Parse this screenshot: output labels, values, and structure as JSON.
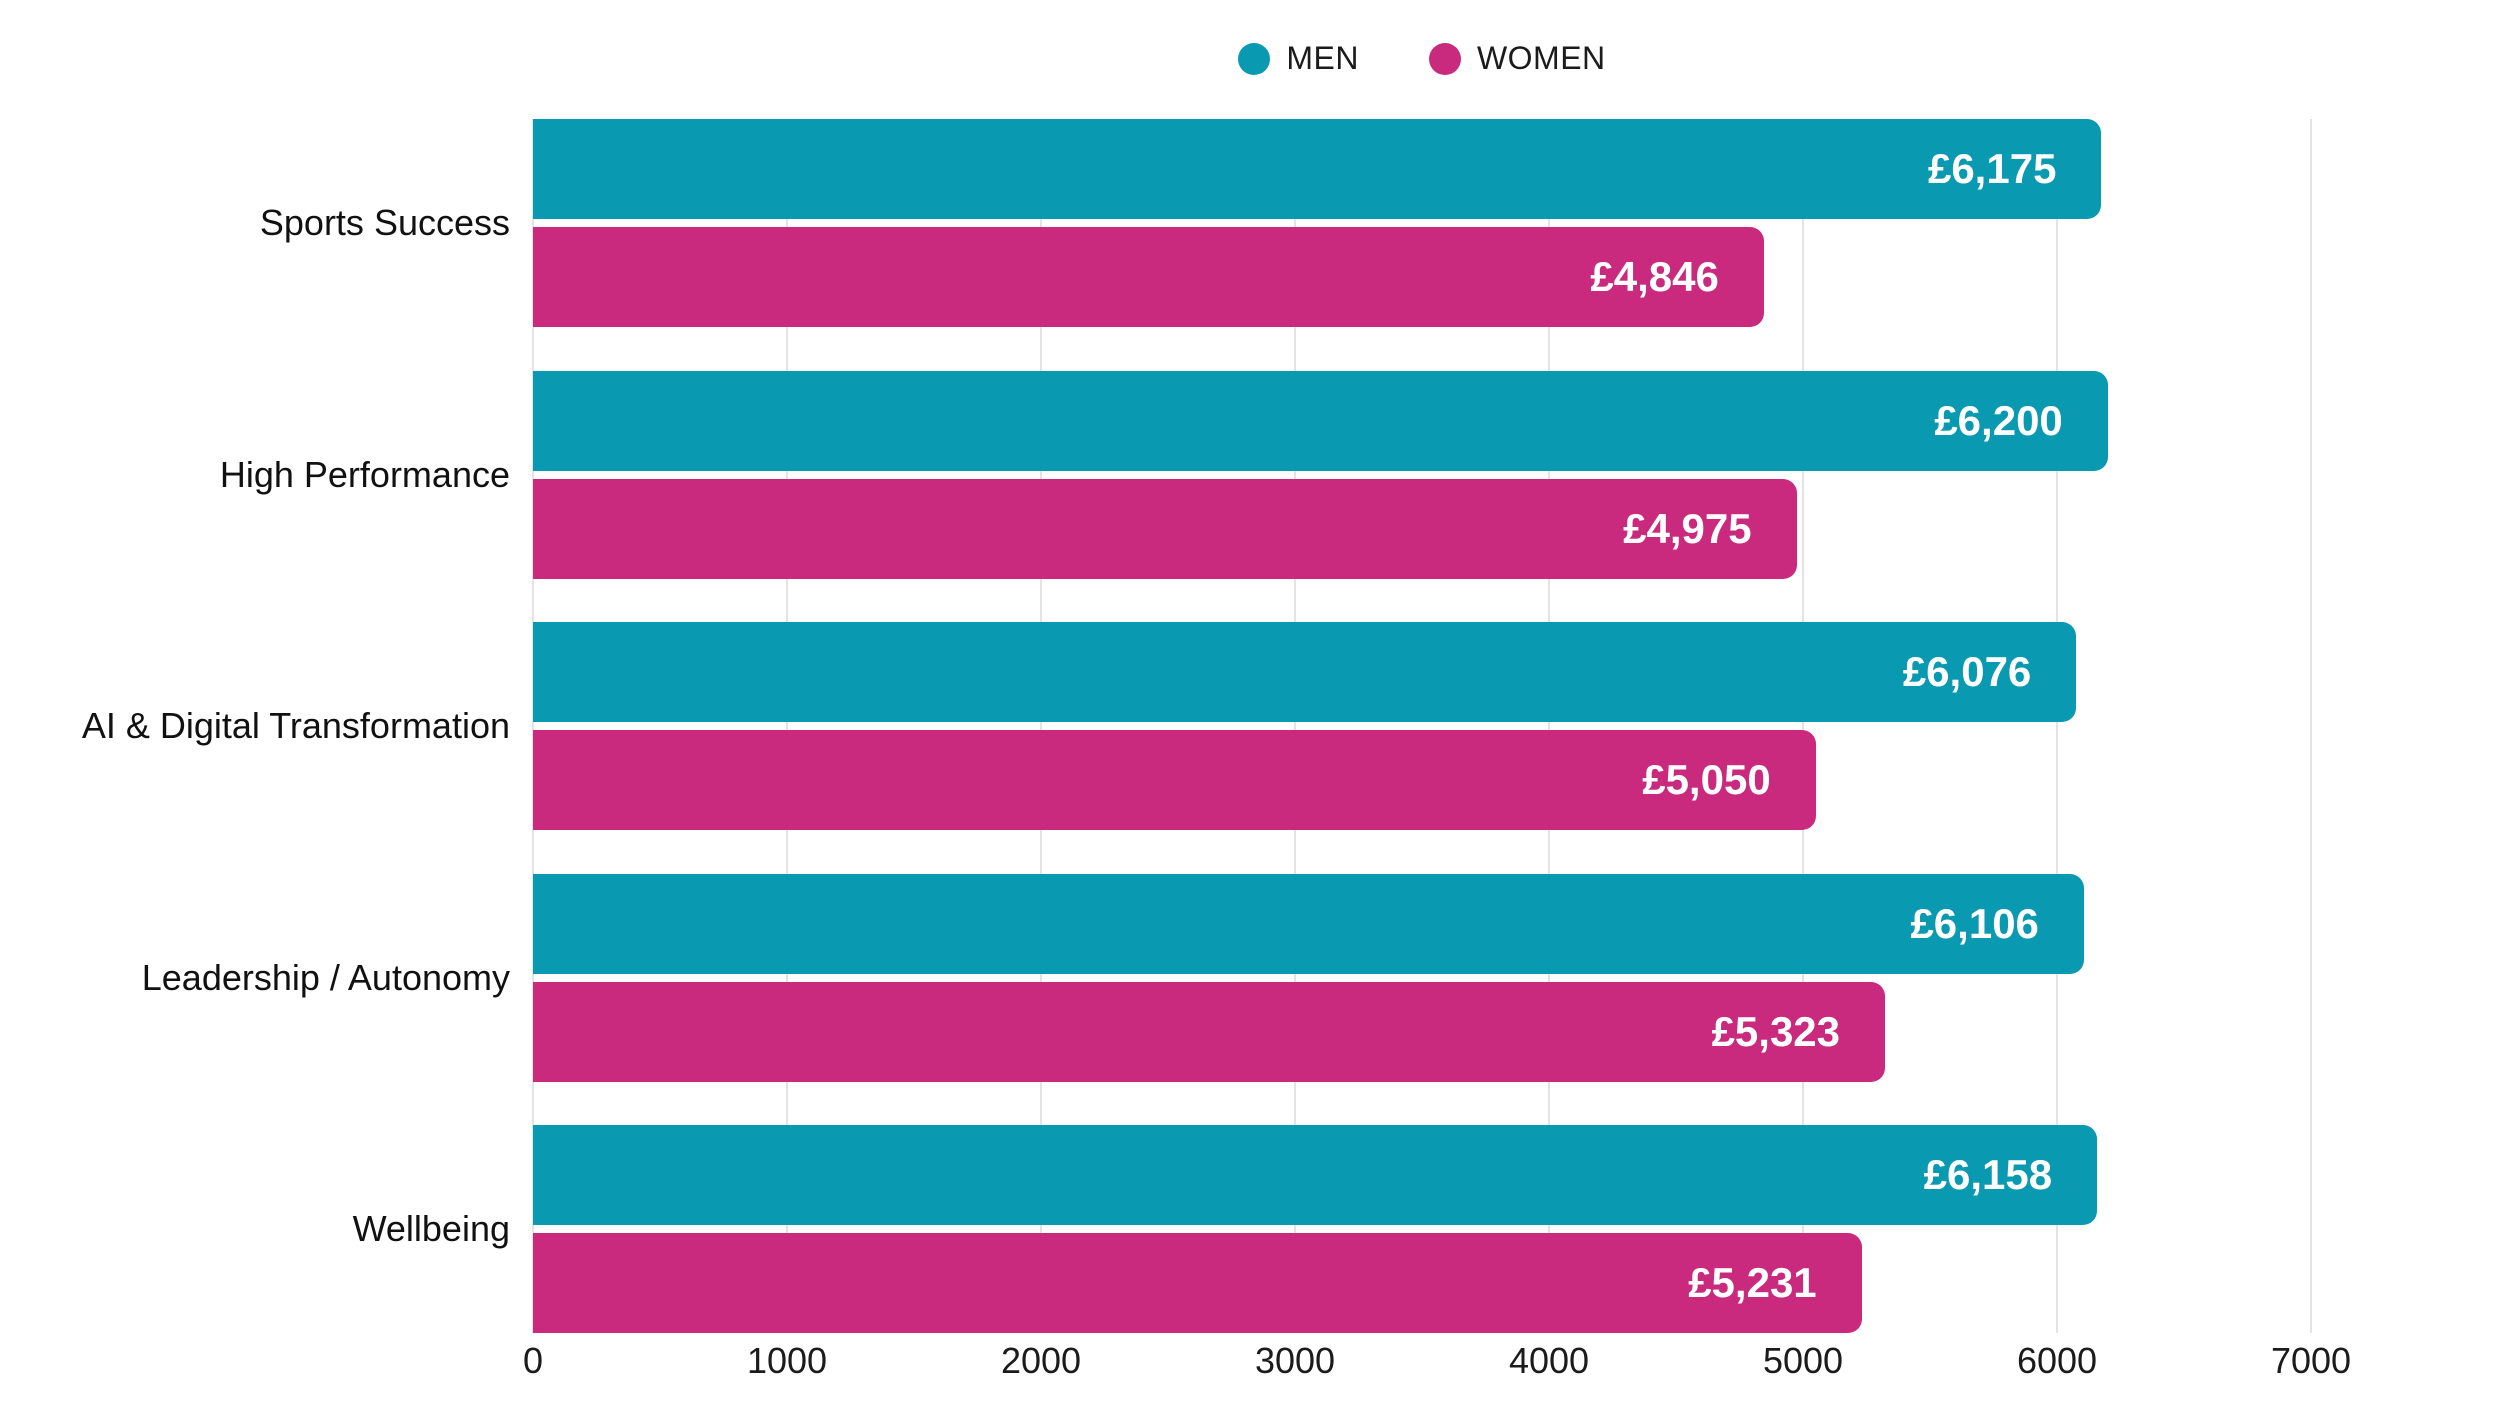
{
  "page": {
    "background": "#FFFFFF",
    "text_color": "#1B1B1B"
  },
  "colors": {
    "men": "#0999B1",
    "women": "#C92A7E",
    "grid": "#E3E3E3",
    "bar_value_text": "#FFFFFF"
  },
  "legend": {
    "position": "top-center",
    "items": [
      {
        "label": "MEN",
        "color": "#0999B1"
      },
      {
        "label": "WOMEN",
        "color": "#C92A7E"
      }
    ]
  },
  "chart_data": {
    "type": "bar",
    "orientation": "horizontal",
    "title": "",
    "categories": [
      "Sports Success",
      "High Performance",
      "AI & Digital Transformation",
      "Leadership / Autonomy",
      "Wellbeing"
    ],
    "series": [
      {
        "name": "MEN",
        "color": "#0999B1",
        "values": [
          6175,
          6200,
          6076,
          6106,
          6158
        ],
        "value_labels": [
          "£6,175",
          "£6,200",
          "£6,076",
          "£6,106",
          "£6,158"
        ]
      },
      {
        "name": "WOMEN",
        "color": "#C92A7E",
        "values": [
          4846,
          4975,
          5050,
          5323,
          5231
        ],
        "value_labels": [
          "£4,846",
          "£4,975",
          "£5,050",
          "£5,323",
          "£5,231"
        ]
      }
    ],
    "x_ticks": [
      0,
      1000,
      2000,
      3000,
      4000,
      5000,
      6000,
      7000
    ],
    "xlim": [
      0,
      7677
    ],
    "xlabel": "",
    "ylabel": "",
    "grid": true,
    "legend_position": "top-center",
    "currency": "£"
  }
}
